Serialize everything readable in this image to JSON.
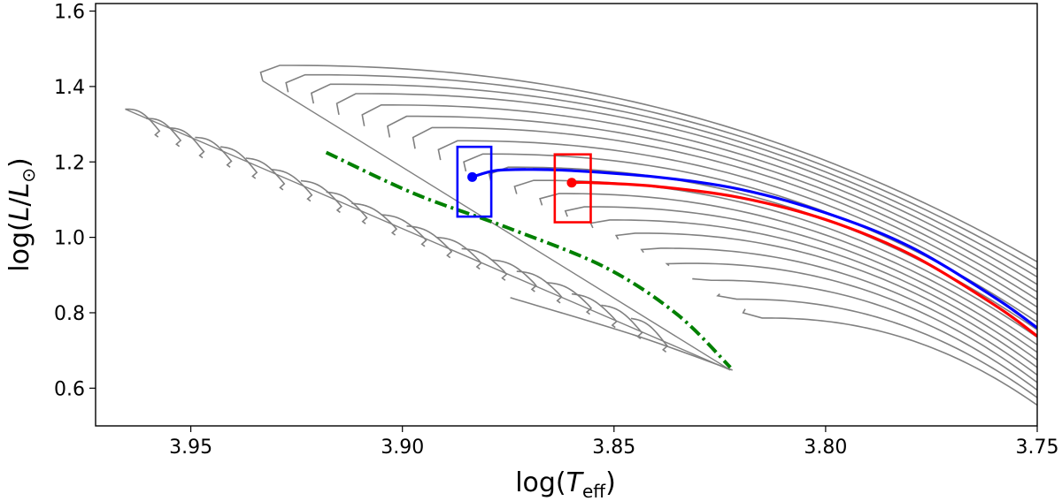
{
  "chart_data": {
    "type": "line",
    "title": "",
    "xlabel": "log(T_eff)",
    "ylabel": "log(L/L_sun)",
    "xlim": [
      3.9725,
      3.75
    ],
    "ylim": [
      0.5,
      1.62
    ],
    "x_inverted": true,
    "x_ticks": [
      "3.95",
      "3.90",
      "3.85",
      "3.80",
      "3.75"
    ],
    "y_ticks": [
      "0.6",
      "0.8",
      "1.0",
      "1.2",
      "1.4",
      "1.6"
    ],
    "grid": false,
    "legend": "none",
    "colors": {
      "tracks": "#808080",
      "zams": "#008000",
      "blue_track": "#0000ff",
      "red_track": "#ff0000",
      "axes": "#000000"
    },
    "low_mass_tracks": [
      {
        "x0": 3.9655,
        "y0": 1.34,
        "x1": 3.958,
        "y1": 1.29
      },
      {
        "x0": 3.9605,
        "y0": 1.315,
        "x1": 3.953,
        "y1": 1.265
      },
      {
        "x0": 3.955,
        "y0": 1.29,
        "x1": 3.9475,
        "y1": 1.235
      },
      {
        "x0": 3.949,
        "y0": 1.265,
        "x1": 3.941,
        "y1": 1.21
      },
      {
        "x0": 3.943,
        "y0": 1.24,
        "x1": 3.935,
        "y1": 1.18
      },
      {
        "x0": 3.937,
        "y0": 1.21,
        "x1": 3.9285,
        "y1": 1.15
      },
      {
        "x0": 3.931,
        "y0": 1.18,
        "x1": 3.922,
        "y1": 1.12
      },
      {
        "x0": 3.924,
        "y0": 1.15,
        "x1": 3.915,
        "y1": 1.09
      },
      {
        "x0": 3.918,
        "y0": 1.12,
        "x1": 3.909,
        "y1": 1.06
      },
      {
        "x0": 3.912,
        "y0": 1.09,
        "x1": 3.902,
        "y1": 1.03
      },
      {
        "x0": 3.905,
        "y0": 1.06,
        "x1": 3.895,
        "y1": 1.0
      },
      {
        "x0": 3.899,
        "y0": 1.03,
        "x1": 3.889,
        "y1": 0.97
      },
      {
        "x0": 3.892,
        "y0": 1.0,
        "x1": 3.882,
        "y1": 0.94
      },
      {
        "x0": 3.886,
        "y0": 0.97,
        "x1": 3.876,
        "y1": 0.91
      },
      {
        "x0": 3.879,
        "y0": 0.94,
        "x1": 3.869,
        "y1": 0.88
      },
      {
        "x0": 3.873,
        "y0": 0.91,
        "x1": 3.863,
        "y1": 0.85
      },
      {
        "x0": 3.866,
        "y0": 0.88,
        "x1": 3.856,
        "y1": 0.82
      },
      {
        "x0": 3.86,
        "y0": 0.85,
        "x1": 3.85,
        "y1": 0.785
      },
      {
        "x0": 3.853,
        "y0": 0.82,
        "x1": 3.844,
        "y1": 0.755
      },
      {
        "x0": 3.846,
        "y0": 0.785,
        "x1": 3.838,
        "y1": 0.72
      }
    ],
    "high_mass_tracks": [
      {
        "x0": 3.933,
        "y0": 1.415,
        "xe": 3.75,
        "ye": 0.935,
        "ym": 1.46
      },
      {
        "x0": 3.927,
        "y0": 1.385,
        "xe": 3.75,
        "ye": 0.915,
        "ym": 1.435
      },
      {
        "x0": 3.921,
        "y0": 1.355,
        "xe": 3.75,
        "ye": 0.895,
        "ym": 1.41
      },
      {
        "x0": 3.915,
        "y0": 1.325,
        "xe": 3.75,
        "ye": 0.875,
        "ym": 1.385
      },
      {
        "x0": 3.909,
        "y0": 1.295,
        "xe": 3.75,
        "ye": 0.855,
        "ym": 1.355
      },
      {
        "x0": 3.903,
        "y0": 1.265,
        "xe": 3.75,
        "ye": 0.835,
        "ym": 1.325
      },
      {
        "x0": 3.897,
        "y0": 1.235,
        "xe": 3.75,
        "ye": 0.815,
        "ym": 1.295
      },
      {
        "x0": 3.891,
        "y0": 1.205,
        "xe": 3.75,
        "ye": 0.795,
        "ym": 1.26
      },
      {
        "x0": 3.885,
        "y0": 1.175,
        "xe": 3.75,
        "ye": 0.775,
        "ym": 1.225
      },
      {
        "x0": 3.879,
        "y0": 1.145,
        "xe": 3.75,
        "ye": 0.755,
        "ym": 1.19
      },
      {
        "x0": 3.873,
        "y0": 1.115,
        "xe": 3.75,
        "ye": 0.735,
        "ym": 1.155
      },
      {
        "x0": 3.867,
        "y0": 1.085,
        "xe": 3.75,
        "ye": 0.715,
        "ym": 1.12
      },
      {
        "x0": 3.861,
        "y0": 1.055,
        "xe": 3.75,
        "ye": 0.695,
        "ym": 1.085
      },
      {
        "x0": 3.855,
        "y0": 1.025,
        "xe": 3.75,
        "ye": 0.675,
        "ym": 1.05
      },
      {
        "x0": 3.849,
        "y0": 0.995,
        "xe": 3.75,
        "ye": 0.655,
        "ym": 1.015
      },
      {
        "x0": 3.843,
        "y0": 0.96,
        "xe": 3.75,
        "ye": 0.635,
        "ym": 0.975
      },
      {
        "x0": 3.837,
        "y0": 0.925,
        "xe": 3.75,
        "ye": 0.615,
        "ym": 0.935
      },
      {
        "x0": 3.831,
        "y0": 0.89,
        "xe": 3.75,
        "ye": 0.595,
        "ym": 0.89
      },
      {
        "x0": 3.825,
        "y0": 0.85,
        "xe": 3.75,
        "ye": 0.575,
        "ym": 0.84
      },
      {
        "x0": 3.819,
        "y0": 0.81,
        "xe": 3.75,
        "ye": 0.555,
        "ym": 0.79
      }
    ],
    "faint_hook": {
      "x": [
        3.8745,
        3.845,
        3.822
      ],
      "y": [
        0.84,
        0.74,
        0.648
      ]
    },
    "zams_line": {
      "x": [
        3.918,
        3.897,
        3.875,
        3.852,
        3.835,
        3.8225
      ],
      "y": [
        1.225,
        1.115,
        1.025,
        0.92,
        0.795,
        0.655
      ]
    },
    "blue_track": {
      "x": [
        3.8835,
        3.878,
        3.87,
        3.86,
        3.84,
        3.82,
        3.8,
        3.78,
        3.76,
        3.75
      ],
      "y": [
        1.16,
        1.177,
        1.18,
        1.177,
        1.16,
        1.127,
        1.065,
        0.975,
        0.84,
        0.76
      ]
    },
    "red_track": {
      "x": [
        3.86,
        3.855,
        3.84,
        3.82,
        3.8,
        3.78,
        3.76,
        3.75
      ],
      "y": [
        1.145,
        1.145,
        1.135,
        1.105,
        1.047,
        0.955,
        0.82,
        0.738
      ]
    },
    "blue_point": {
      "x": 3.8835,
      "y": 1.16
    },
    "red_point": {
      "x": 3.86,
      "y": 1.145
    },
    "blue_box": {
      "x_left": 3.887,
      "x_right": 3.879,
      "y_bottom": 1.055,
      "y_top": 1.24
    },
    "red_box": {
      "x_left": 3.864,
      "x_right": 3.8555,
      "y_bottom": 1.04,
      "y_top": 1.22
    }
  }
}
